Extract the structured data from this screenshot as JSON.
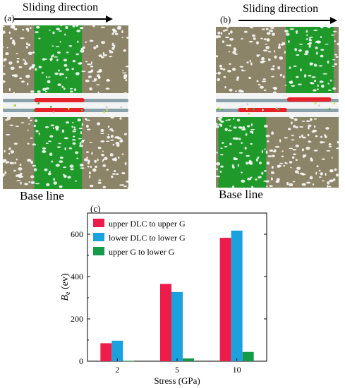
{
  "panels": [
    {
      "label": "(a)",
      "direction_label": "Sliding direction",
      "base_label": "Base line",
      "type": "aligned"
    },
    {
      "label": "(b)",
      "direction_label": "Sliding direction",
      "base_label": "Base line",
      "type": "shifted"
    }
  ],
  "colors": {
    "substrate": "#8c8468",
    "pore": "#ffffff",
    "marker_band": "#1f9a2a",
    "graphene_gray": "#8aa0aa",
    "graphene_red": "#e8202a"
  },
  "chart_data": {
    "type": "bar",
    "panel_label": "(c)",
    "categories": [
      "2",
      "5",
      "10"
    ],
    "series": [
      {
        "name": "upper DLC to upper G",
        "color": "#ee1c4a",
        "values": [
          85,
          365,
          583
        ]
      },
      {
        "name": "lower DLC to lower G",
        "color": "#1ba1de",
        "values": [
          97,
          327,
          617
        ]
      },
      {
        "name": "upper G to lower G",
        "color": "#159a4a",
        "values": [
          2,
          13,
          44
        ]
      }
    ],
    "xlabel": "Stress (GPa)",
    "ylabel_main": "B",
    "ylabel_sub": "e",
    "ylabel_unit": " (ev)",
    "ylim": [
      0,
      700
    ],
    "yticks": [
      "0",
      "200",
      "400",
      "600"
    ],
    "legend_position": "top-left",
    "grid": false
  }
}
